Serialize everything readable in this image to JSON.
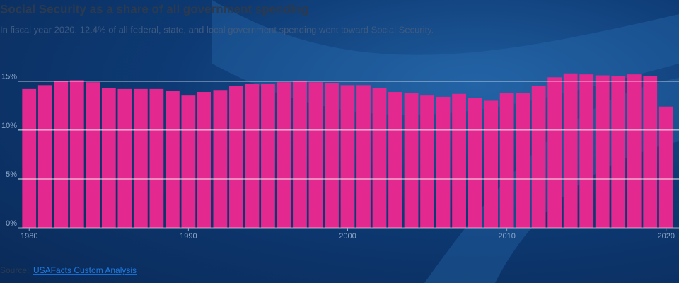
{
  "chart_data": {
    "type": "bar",
    "title": "Social Security as a share of all government spending",
    "subtitle": "In fiscal year 2020, 12.4% of all federal, state, and local government spending went toward Social Security.",
    "x": [
      1980,
      1981,
      1982,
      1983,
      1984,
      1985,
      1986,
      1987,
      1988,
      1989,
      1990,
      1991,
      1992,
      1993,
      1994,
      1995,
      1996,
      1997,
      1998,
      1999,
      2000,
      2001,
      2002,
      2003,
      2004,
      2005,
      2006,
      2007,
      2008,
      2009,
      2010,
      2011,
      2012,
      2013,
      2014,
      2015,
      2016,
      2017,
      2018,
      2019,
      2020
    ],
    "values": [
      14.2,
      14.6,
      15.0,
      15.1,
      14.9,
      14.3,
      14.2,
      14.2,
      14.2,
      14.0,
      13.6,
      13.9,
      14.1,
      14.5,
      14.7,
      14.7,
      14.9,
      15.0,
      14.9,
      14.8,
      14.6,
      14.6,
      14.3,
      13.9,
      13.8,
      13.6,
      13.4,
      13.7,
      13.3,
      13.0,
      13.8,
      13.8,
      14.5,
      15.4,
      15.8,
      15.7,
      15.6,
      15.5,
      15.7,
      15.5,
      12.4
    ],
    "color": "#e3288f",
    "xlim": [
      1979.5,
      2020.5
    ],
    "xticks": [
      1980,
      1990,
      2000,
      2010,
      2020
    ],
    "ylim": [
      0,
      16
    ],
    "yticks": [
      {
        "value": 0,
        "label": "0%"
      },
      {
        "value": 5,
        "label": "5%"
      },
      {
        "value": 10,
        "label": "10%"
      },
      {
        "value": 15,
        "label": "15%"
      }
    ],
    "grid": true,
    "source_label": "Source:",
    "source_link": "USAFacts Custom Analysis"
  }
}
